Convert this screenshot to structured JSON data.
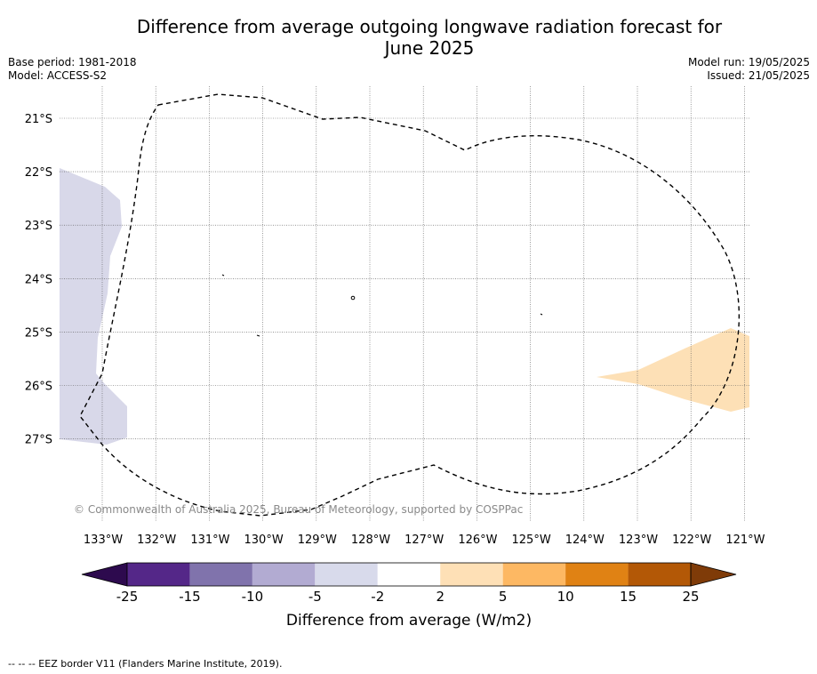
{
  "title": "Difference from average outgoing longwave radiation forecast for June 2025",
  "title_lines": [
    "Difference from average outgoing longwave radiation forecast for",
    "June 2025"
  ],
  "meta_left": [
    "Base period: 1981-2018",
    "Model: ACCESS-S2"
  ],
  "meta_right": [
    "Model run: 19/05/2025",
    "Issued: 21/05/2025"
  ],
  "map": {
    "lat_labels": [
      "21°S",
      "22°S",
      "23°S",
      "24°S",
      "25°S",
      "26°S",
      "27°S"
    ],
    "lon_labels": [
      "133°W",
      "132°W",
      "131°W",
      "130°W",
      "129°W",
      "128°W",
      "127°W",
      "126°W",
      "125°W",
      "124°W",
      "123°W",
      "122°W",
      "121°W"
    ],
    "copyright": "© Commonwealth of Australia 2025, Bureau of Meteorology, supported by COSPPac",
    "anomaly_regions": [
      {
        "name": "west-negative-anomaly",
        "category": "-5 to -2",
        "color": "#d8d8e9"
      },
      {
        "name": "east-positive-anomaly",
        "category": "2 to 5",
        "color": "#fde0b6"
      }
    ],
    "eez_line_style": "dashed"
  },
  "colorbar": {
    "label": "Difference from average (W/m2)",
    "ticks": [
      "-25",
      "-15",
      "-10",
      "-5",
      "-2",
      "2",
      "5",
      "10",
      "15",
      "25"
    ],
    "colors": [
      "#2d0a4e",
      "#542788",
      "#8073ac",
      "#b2abd2",
      "#d8daeb",
      "#ffffff",
      "#fee0b6",
      "#fdb863",
      "#e08214",
      "#b35806",
      "#7f3b08"
    ]
  },
  "footnote": "--  --  -- EEZ border V11 (Flanders Marine Institute, 2019)."
}
